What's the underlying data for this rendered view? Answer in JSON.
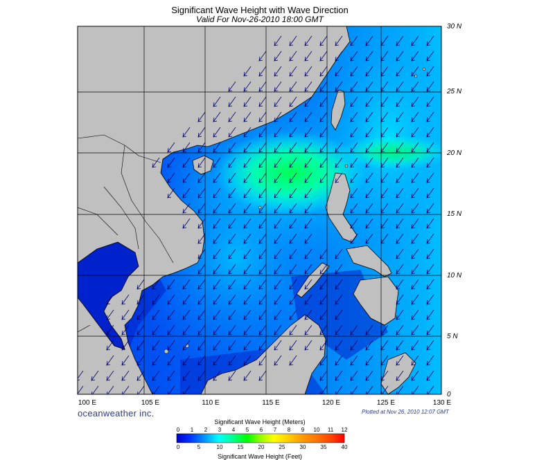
{
  "title": "Significant Wave Height with Wave Direction",
  "subtitle": "Valid For Nov-26-2010 18:00 GMT",
  "brand": "oceanweather inc.",
  "plotted": "Plotted at Nov 26, 2010 12:07 GMT",
  "lat_labels": [
    "30 N",
    "25 N",
    "20 N",
    "15 N",
    "10 N",
    "5 N",
    "0"
  ],
  "lon_labels": [
    "100 E",
    "105 E",
    "110 E",
    "115 E",
    "120 E",
    "125 E",
    "130 E"
  ],
  "colorbar": {
    "title_top": "Significant Wave Height (Meters)",
    "title_bottom": "Significant Wave Height (Feet)",
    "meters_ticks": [
      "0",
      "1",
      "2",
      "3",
      "4",
      "5",
      "6",
      "7",
      "8",
      "9",
      "10",
      "11",
      "12"
    ],
    "feet_ticks": [
      "0",
      "5",
      "10",
      "15",
      "20",
      "25",
      "30",
      "35",
      "40"
    ],
    "colors": [
      "#0000cc",
      "#0033ff",
      "#0099ff",
      "#00ffff",
      "#00ff66",
      "#66ff00",
      "#ccff00",
      "#ffff00",
      "#ffcc00",
      "#ff9900",
      "#ff6600",
      "#ff3300"
    ]
  },
  "colors": {
    "land": "#c0c0c0",
    "sea_low": "#0000dd",
    "sea_mid": "#0088ff",
    "sea_high": "#00ff88",
    "arrow": "#000066"
  }
}
